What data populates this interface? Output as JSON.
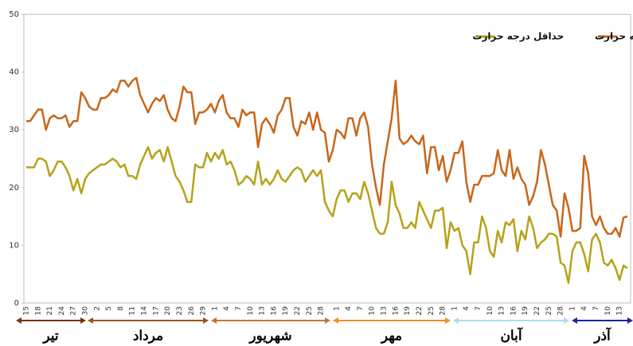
{
  "chart_data": {
    "type": "line",
    "categories": [
      "15",
      null,
      null,
      "18",
      null,
      null,
      "21",
      null,
      null,
      "24",
      null,
      null,
      "27",
      null,
      null,
      "30",
      null,
      null,
      "2",
      null,
      null,
      "5",
      null,
      null,
      "8",
      null,
      null,
      "11",
      null,
      null,
      "14",
      null,
      null,
      "17",
      null,
      null,
      "20",
      null,
      null,
      "23",
      null,
      null,
      "26",
      null,
      null,
      "29",
      null,
      null,
      "1",
      null,
      null,
      "4",
      null,
      null,
      "7",
      null,
      null,
      "10",
      null,
      null,
      "13",
      null,
      null,
      "16",
      null,
      null,
      "19",
      null,
      null,
      "22",
      null,
      null,
      "25",
      null,
      null,
      "28",
      null,
      null,
      null,
      "1",
      null,
      null,
      "4",
      null,
      null,
      "7",
      null,
      null,
      "10",
      null,
      null,
      "13",
      null,
      null,
      "16",
      null,
      null,
      "19",
      null,
      null,
      "22",
      null,
      null,
      "25",
      null,
      null,
      "28",
      null,
      null,
      "1",
      null,
      null,
      "4",
      null,
      null,
      "7",
      null,
      null,
      "10",
      null,
      null,
      "13",
      null,
      null,
      "16",
      null,
      null,
      "19",
      null,
      null,
      "22",
      null,
      null,
      "25",
      null,
      null,
      "28",
      null,
      null,
      "1",
      null,
      null,
      "4",
      null,
      null,
      "7",
      null,
      null,
      "10",
      null,
      null,
      "13",
      null,
      null
    ],
    "series": [
      {
        "name": "حداکثر درجه حرارت",
        "color": "#c8661a",
        "values": [
          31.5,
          31.5,
          32.5,
          33.5,
          33.5,
          30,
          32,
          32.5,
          32,
          32,
          32.5,
          30.5,
          31.5,
          31.5,
          36.5,
          35.5,
          34,
          33.5,
          33.5,
          35.5,
          35.5,
          36,
          37,
          36.5,
          38.5,
          38.5,
          37.5,
          38.5,
          39,
          36,
          34.5,
          33,
          34.5,
          35.5,
          35,
          36,
          33.5,
          32,
          31.5,
          34,
          37.5,
          36.5,
          36.5,
          31,
          33,
          33,
          33.5,
          34.5,
          33,
          35,
          36,
          33,
          32,
          32,
          30.5,
          33.5,
          32.5,
          33,
          33,
          27,
          31,
          32,
          31,
          29.5,
          32.5,
          33.5,
          35.5,
          35.5,
          30.5,
          29,
          31.5,
          31,
          33,
          30,
          33,
          30,
          29.5,
          24.5,
          26.5,
          30,
          29.5,
          28.5,
          32,
          32,
          29,
          32,
          33,
          30.5,
          24,
          20,
          17,
          24,
          28,
          32,
          38.5,
          28.5,
          27.5,
          28,
          29,
          28,
          27.5,
          29,
          22.5,
          27,
          27,
          23,
          25.5,
          21,
          23,
          26,
          26,
          28,
          21,
          17.5,
          20.5,
          20.5,
          22,
          22,
          22,
          22.5,
          26.5,
          23,
          22,
          26.5,
          21.5,
          23.5,
          21.5,
          20.5,
          17,
          18.5,
          21,
          26.5,
          24,
          20.5,
          17,
          16,
          11.5,
          19,
          16.5,
          12.5,
          12.5,
          13,
          25.5,
          22.5,
          15,
          13.5,
          15,
          13,
          12,
          12,
          13,
          11.5,
          14.8,
          15
        ]
      },
      {
        "name": "حداقل درجه حرارت",
        "color": "#b5a21a",
        "values": [
          23.5,
          23.5,
          23.5,
          25,
          25,
          24.5,
          22,
          23,
          24.5,
          24.5,
          23.5,
          22,
          19.5,
          21.5,
          19,
          21.5,
          22.5,
          23,
          23.5,
          24,
          24,
          24.5,
          25,
          24.5,
          23.5,
          24,
          22,
          22,
          21.5,
          24,
          25.5,
          27,
          25,
          26,
          26.5,
          24.5,
          27,
          24.5,
          22,
          21,
          19.5,
          17.5,
          17.5,
          24,
          23.5,
          23.5,
          26,
          24.5,
          26,
          25,
          26.5,
          24,
          24.5,
          23,
          20.5,
          21,
          22,
          21.5,
          20.5,
          24.5,
          20.5,
          21.5,
          20.5,
          21.5,
          23,
          21.5,
          21,
          22,
          23,
          23.5,
          23,
          21,
          22,
          23,
          22,
          23,
          17.5,
          16,
          15,
          18,
          19.5,
          19.5,
          17.5,
          19,
          19,
          18,
          21,
          19,
          16,
          13,
          12,
          12,
          14,
          21,
          17,
          15.5,
          13,
          13,
          14,
          13,
          17.5,
          16,
          14.5,
          13,
          16,
          16,
          16.5,
          9.5,
          14,
          12.5,
          13,
          10,
          9,
          5,
          10.5,
          10.5,
          15,
          13,
          9,
          8,
          12.5,
          10.5,
          14,
          13.5,
          14.5,
          9,
          12.5,
          11,
          15,
          13,
          9.5,
          10.5,
          11,
          12,
          12,
          11.5,
          7,
          6.5,
          3.5,
          9,
          10.5,
          10.5,
          8.5,
          5.5,
          11,
          12,
          10.5,
          7,
          6.5,
          7.5,
          6,
          4,
          6.5,
          6
        ]
      }
    ],
    "ylim": [
      0,
      50
    ],
    "yticks": [
      0,
      10,
      20,
      30,
      40,
      50
    ],
    "grid": false,
    "legend": "top-right",
    "months": [
      {
        "name": "تیر",
        "color": "#7a3010"
      },
      {
        "name": "مرداد",
        "color": "#a0501e"
      },
      {
        "name": "شهریور",
        "color": "#c07830"
      },
      {
        "name": "مهر",
        "color": "#e8922a"
      },
      {
        "name": "آبان",
        "color": "#a8dcf4"
      },
      {
        "name": "آذر",
        "color": "#2020a8"
      }
    ]
  }
}
